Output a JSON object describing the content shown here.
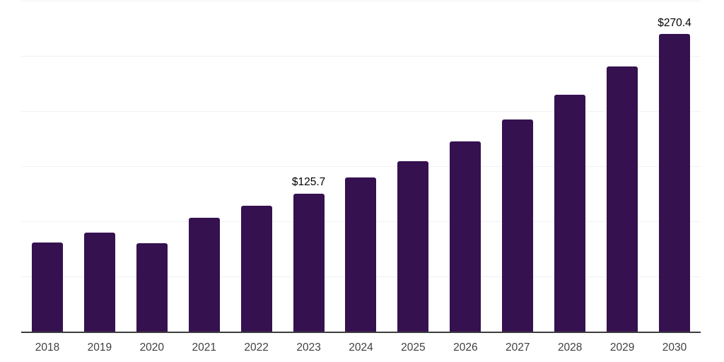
{
  "chart_data": {
    "type": "bar",
    "title": "",
    "xlabel": "",
    "ylabel": "",
    "legend": "none",
    "grid": "horizontal",
    "categories": [
      "2018",
      "2019",
      "2020",
      "2021",
      "2022",
      "2023",
      "2024",
      "2025",
      "2026",
      "2027",
      "2028",
      "2029",
      "2030"
    ],
    "values": [
      81.4,
      90.7,
      80.7,
      103.6,
      114.6,
      125.7,
      140.1,
      154.9,
      173.4,
      193.1,
      215.3,
      240.8,
      270.4
    ],
    "data_labels": [
      "",
      "",
      "",
      "",
      "",
      "$125.7",
      "",
      "",
      "",
      "",
      "",
      "",
      "$270.4"
    ],
    "ylim": [
      0,
      300
    ],
    "gridline_step": 50,
    "colors": {
      "bar": "#351150",
      "gridline": "#f1f0f3",
      "axis_line": "#3d3d3d",
      "tick_label": "#404040",
      "data_label": "#000000",
      "background": "#ffffff"
    }
  }
}
